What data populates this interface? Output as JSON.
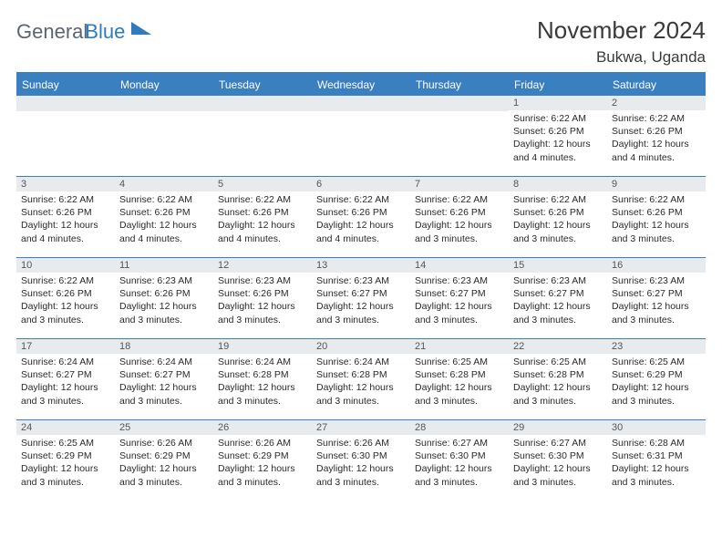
{
  "brand": {
    "part1": "General",
    "part2": "Blue"
  },
  "header": {
    "month_title": "November 2024",
    "location": "Bukwa, Uganda"
  },
  "colors": {
    "accent": "#3a7fbf",
    "daynum_bg": "#e8ebee",
    "text": "#2a2a2a"
  },
  "weekdays": [
    "Sunday",
    "Monday",
    "Tuesday",
    "Wednesday",
    "Thursday",
    "Friday",
    "Saturday"
  ],
  "weeks": [
    [
      {
        "n": "",
        "sr": "",
        "ss": "",
        "dl": ""
      },
      {
        "n": "",
        "sr": "",
        "ss": "",
        "dl": ""
      },
      {
        "n": "",
        "sr": "",
        "ss": "",
        "dl": ""
      },
      {
        "n": "",
        "sr": "",
        "ss": "",
        "dl": ""
      },
      {
        "n": "",
        "sr": "",
        "ss": "",
        "dl": ""
      },
      {
        "n": "1",
        "sr": "Sunrise: 6:22 AM",
        "ss": "Sunset: 6:26 PM",
        "dl": "Daylight: 12 hours and 4 minutes."
      },
      {
        "n": "2",
        "sr": "Sunrise: 6:22 AM",
        "ss": "Sunset: 6:26 PM",
        "dl": "Daylight: 12 hours and 4 minutes."
      }
    ],
    [
      {
        "n": "3",
        "sr": "Sunrise: 6:22 AM",
        "ss": "Sunset: 6:26 PM",
        "dl": "Daylight: 12 hours and 4 minutes."
      },
      {
        "n": "4",
        "sr": "Sunrise: 6:22 AM",
        "ss": "Sunset: 6:26 PM",
        "dl": "Daylight: 12 hours and 4 minutes."
      },
      {
        "n": "5",
        "sr": "Sunrise: 6:22 AM",
        "ss": "Sunset: 6:26 PM",
        "dl": "Daylight: 12 hours and 4 minutes."
      },
      {
        "n": "6",
        "sr": "Sunrise: 6:22 AM",
        "ss": "Sunset: 6:26 PM",
        "dl": "Daylight: 12 hours and 4 minutes."
      },
      {
        "n": "7",
        "sr": "Sunrise: 6:22 AM",
        "ss": "Sunset: 6:26 PM",
        "dl": "Daylight: 12 hours and 3 minutes."
      },
      {
        "n": "8",
        "sr": "Sunrise: 6:22 AM",
        "ss": "Sunset: 6:26 PM",
        "dl": "Daylight: 12 hours and 3 minutes."
      },
      {
        "n": "9",
        "sr": "Sunrise: 6:22 AM",
        "ss": "Sunset: 6:26 PM",
        "dl": "Daylight: 12 hours and 3 minutes."
      }
    ],
    [
      {
        "n": "10",
        "sr": "Sunrise: 6:22 AM",
        "ss": "Sunset: 6:26 PM",
        "dl": "Daylight: 12 hours and 3 minutes."
      },
      {
        "n": "11",
        "sr": "Sunrise: 6:23 AM",
        "ss": "Sunset: 6:26 PM",
        "dl": "Daylight: 12 hours and 3 minutes."
      },
      {
        "n": "12",
        "sr": "Sunrise: 6:23 AM",
        "ss": "Sunset: 6:26 PM",
        "dl": "Daylight: 12 hours and 3 minutes."
      },
      {
        "n": "13",
        "sr": "Sunrise: 6:23 AM",
        "ss": "Sunset: 6:27 PM",
        "dl": "Daylight: 12 hours and 3 minutes."
      },
      {
        "n": "14",
        "sr": "Sunrise: 6:23 AM",
        "ss": "Sunset: 6:27 PM",
        "dl": "Daylight: 12 hours and 3 minutes."
      },
      {
        "n": "15",
        "sr": "Sunrise: 6:23 AM",
        "ss": "Sunset: 6:27 PM",
        "dl": "Daylight: 12 hours and 3 minutes."
      },
      {
        "n": "16",
        "sr": "Sunrise: 6:23 AM",
        "ss": "Sunset: 6:27 PM",
        "dl": "Daylight: 12 hours and 3 minutes."
      }
    ],
    [
      {
        "n": "17",
        "sr": "Sunrise: 6:24 AM",
        "ss": "Sunset: 6:27 PM",
        "dl": "Daylight: 12 hours and 3 minutes."
      },
      {
        "n": "18",
        "sr": "Sunrise: 6:24 AM",
        "ss": "Sunset: 6:27 PM",
        "dl": "Daylight: 12 hours and 3 minutes."
      },
      {
        "n": "19",
        "sr": "Sunrise: 6:24 AM",
        "ss": "Sunset: 6:28 PM",
        "dl": "Daylight: 12 hours and 3 minutes."
      },
      {
        "n": "20",
        "sr": "Sunrise: 6:24 AM",
        "ss": "Sunset: 6:28 PM",
        "dl": "Daylight: 12 hours and 3 minutes."
      },
      {
        "n": "21",
        "sr": "Sunrise: 6:25 AM",
        "ss": "Sunset: 6:28 PM",
        "dl": "Daylight: 12 hours and 3 minutes."
      },
      {
        "n": "22",
        "sr": "Sunrise: 6:25 AM",
        "ss": "Sunset: 6:28 PM",
        "dl": "Daylight: 12 hours and 3 minutes."
      },
      {
        "n": "23",
        "sr": "Sunrise: 6:25 AM",
        "ss": "Sunset: 6:29 PM",
        "dl": "Daylight: 12 hours and 3 minutes."
      }
    ],
    [
      {
        "n": "24",
        "sr": "Sunrise: 6:25 AM",
        "ss": "Sunset: 6:29 PM",
        "dl": "Daylight: 12 hours and 3 minutes."
      },
      {
        "n": "25",
        "sr": "Sunrise: 6:26 AM",
        "ss": "Sunset: 6:29 PM",
        "dl": "Daylight: 12 hours and 3 minutes."
      },
      {
        "n": "26",
        "sr": "Sunrise: 6:26 AM",
        "ss": "Sunset: 6:29 PM",
        "dl": "Daylight: 12 hours and 3 minutes."
      },
      {
        "n": "27",
        "sr": "Sunrise: 6:26 AM",
        "ss": "Sunset: 6:30 PM",
        "dl": "Daylight: 12 hours and 3 minutes."
      },
      {
        "n": "28",
        "sr": "Sunrise: 6:27 AM",
        "ss": "Sunset: 6:30 PM",
        "dl": "Daylight: 12 hours and 3 minutes."
      },
      {
        "n": "29",
        "sr": "Sunrise: 6:27 AM",
        "ss": "Sunset: 6:30 PM",
        "dl": "Daylight: 12 hours and 3 minutes."
      },
      {
        "n": "30",
        "sr": "Sunrise: 6:28 AM",
        "ss": "Sunset: 6:31 PM",
        "dl": "Daylight: 12 hours and 3 minutes."
      }
    ]
  ]
}
